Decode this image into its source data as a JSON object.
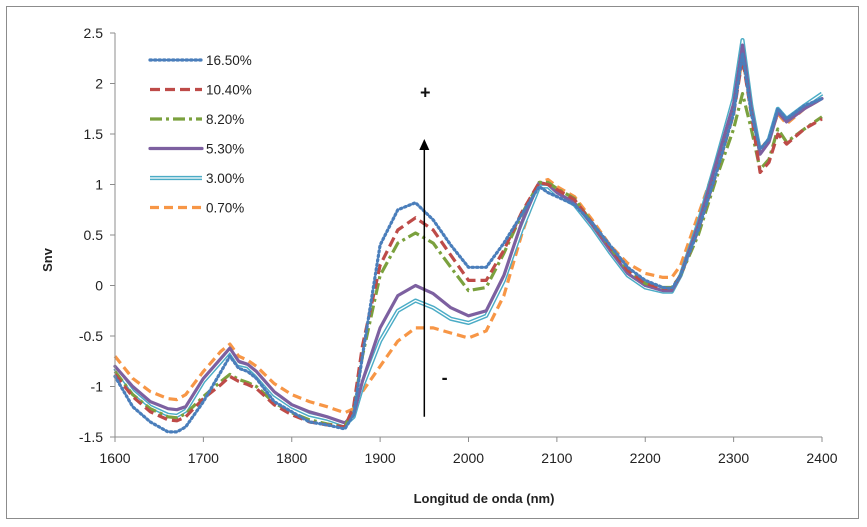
{
  "chart_data": {
    "type": "line",
    "title": "",
    "xlabel": "Longitud de onda  (nm)",
    "ylabel": "Snv",
    "xlim": [
      1600,
      2400
    ],
    "ylim": [
      -1.5,
      2.5
    ],
    "x_ticks": [
      "1600",
      "1700",
      "1800",
      "1900",
      "2000",
      "2100",
      "2200",
      "2300",
      "2400"
    ],
    "y_ticks": [
      "2.5",
      "2",
      "1.5",
      "1",
      "0.5",
      "0",
      "-0.5",
      "-1",
      "-1.5"
    ],
    "grid": false,
    "legend_position": "top-left",
    "annotations": [
      {
        "text": "+",
        "x": 1951,
        "y": 1.85
      },
      {
        "text": "-",
        "x": 1973,
        "y": -0.97
      }
    ],
    "arrow": {
      "from": [
        1950,
        -1.3
      ],
      "to": [
        1950,
        1.45
      ],
      "color": "#000000"
    },
    "x": [
      1600,
      1620,
      1640,
      1660,
      1670,
      1680,
      1700,
      1720,
      1730,
      1740,
      1750,
      1760,
      1780,
      1800,
      1820,
      1840,
      1860,
      1870,
      1880,
      1900,
      1920,
      1940,
      1960,
      1980,
      2000,
      2020,
      2040,
      2060,
      2080,
      2090,
      2100,
      2120,
      2140,
      2160,
      2180,
      2200,
      2220,
      2230,
      2240,
      2260,
      2280,
      2300,
      2310,
      2320,
      2330,
      2340,
      2350,
      2360,
      2380,
      2400
    ],
    "series": [
      {
        "name": "16.50%",
        "color": "#4a7ebb",
        "dash": "dotted",
        "values": [
          -0.9,
          -1.2,
          -1.35,
          -1.45,
          -1.45,
          -1.4,
          -1.15,
          -0.85,
          -0.7,
          -0.82,
          -0.85,
          -0.92,
          -1.15,
          -1.25,
          -1.35,
          -1.38,
          -1.42,
          -1.28,
          -0.7,
          0.4,
          0.75,
          0.82,
          0.65,
          0.4,
          0.18,
          0.18,
          0.42,
          0.7,
          0.98,
          0.92,
          0.88,
          0.8,
          0.62,
          0.4,
          0.18,
          0.05,
          -0.02,
          -0.03,
          0.1,
          0.55,
          1.1,
          1.7,
          2.3,
          1.7,
          1.35,
          1.45,
          1.75,
          1.65,
          1.78,
          1.85
        ]
      },
      {
        "name": "10.40%",
        "color": "#be4b48",
        "dash": "dashed",
        "values": [
          -0.88,
          -1.1,
          -1.25,
          -1.33,
          -1.34,
          -1.3,
          -1.12,
          -0.98,
          -0.9,
          -0.95,
          -0.98,
          -1.02,
          -1.18,
          -1.28,
          -1.35,
          -1.38,
          -1.4,
          -1.2,
          -0.6,
          0.2,
          0.55,
          0.67,
          0.55,
          0.3,
          0.05,
          0.05,
          0.35,
          0.72,
          1.02,
          1.0,
          0.95,
          0.85,
          0.62,
          0.38,
          0.15,
          0.02,
          -0.03,
          -0.03,
          0.1,
          0.55,
          1.1,
          1.7,
          2.25,
          1.7,
          1.12,
          1.22,
          1.5,
          1.4,
          1.55,
          1.65
        ]
      },
      {
        "name": "8.20%",
        "color": "#7ba13e",
        "dash": "dashdot",
        "values": [
          -0.85,
          -1.08,
          -1.22,
          -1.3,
          -1.31,
          -1.27,
          -1.1,
          -0.95,
          -0.88,
          -0.93,
          -0.96,
          -1.0,
          -1.16,
          -1.26,
          -1.33,
          -1.37,
          -1.4,
          -1.22,
          -0.7,
          0.1,
          0.42,
          0.52,
          0.42,
          0.18,
          -0.05,
          -0.02,
          0.32,
          0.7,
          1.02,
          1.02,
          0.96,
          0.86,
          0.62,
          0.38,
          0.15,
          0.02,
          -0.02,
          -0.02,
          0.1,
          0.5,
          1.05,
          1.55,
          1.9,
          1.55,
          1.15,
          1.25,
          1.55,
          1.42,
          1.55,
          1.67
        ]
      },
      {
        "name": "5.30%",
        "color": "#7d60a0",
        "dash": "solid",
        "values": [
          -0.8,
          -1.0,
          -1.15,
          -1.22,
          -1.23,
          -1.2,
          -0.92,
          -0.72,
          -0.62,
          -0.75,
          -0.78,
          -0.85,
          -1.05,
          -1.18,
          -1.25,
          -1.3,
          -1.36,
          -1.28,
          -0.95,
          -0.42,
          -0.1,
          0.0,
          -0.08,
          -0.22,
          -0.3,
          -0.25,
          0.1,
          0.62,
          1.02,
          1.0,
          0.92,
          0.82,
          0.6,
          0.35,
          0.12,
          0.0,
          -0.05,
          -0.05,
          0.1,
          0.6,
          1.2,
          1.8,
          2.38,
          1.75,
          1.3,
          1.42,
          1.72,
          1.62,
          1.75,
          1.85
        ]
      },
      {
        "name": "3.00%",
        "color": "#4bacc6",
        "dash": "double",
        "values": [
          -0.82,
          -1.05,
          -1.2,
          -1.28,
          -1.29,
          -1.24,
          -0.95,
          -0.75,
          -0.65,
          -0.78,
          -0.8,
          -0.88,
          -1.08,
          -1.2,
          -1.28,
          -1.32,
          -1.38,
          -1.3,
          -1.0,
          -0.55,
          -0.25,
          -0.15,
          -0.22,
          -0.33,
          -0.37,
          -0.3,
          0.05,
          0.55,
          0.98,
          0.98,
          0.9,
          0.8,
          0.58,
          0.33,
          0.1,
          -0.02,
          -0.06,
          -0.06,
          0.1,
          0.62,
          1.22,
          1.85,
          2.43,
          1.78,
          1.32,
          1.45,
          1.75,
          1.65,
          1.78,
          1.9
        ]
      },
      {
        "name": "0.70%",
        "color": "#f79646",
        "dash": "dashed-long",
        "values": [
          -0.7,
          -0.92,
          -1.05,
          -1.12,
          -1.13,
          -1.08,
          -0.85,
          -0.65,
          -0.58,
          -0.7,
          -0.74,
          -0.8,
          -0.97,
          -1.08,
          -1.15,
          -1.2,
          -1.26,
          -1.22,
          -1.05,
          -0.8,
          -0.55,
          -0.42,
          -0.42,
          -0.47,
          -0.52,
          -0.45,
          -0.1,
          0.5,
          1.02,
          1.05,
          0.98,
          0.88,
          0.65,
          0.4,
          0.22,
          0.12,
          0.08,
          0.08,
          0.2,
          0.7,
          1.2,
          1.75,
          2.25,
          1.75,
          1.35,
          1.45,
          1.7,
          1.6,
          1.75,
          1.85
        ]
      }
    ]
  }
}
